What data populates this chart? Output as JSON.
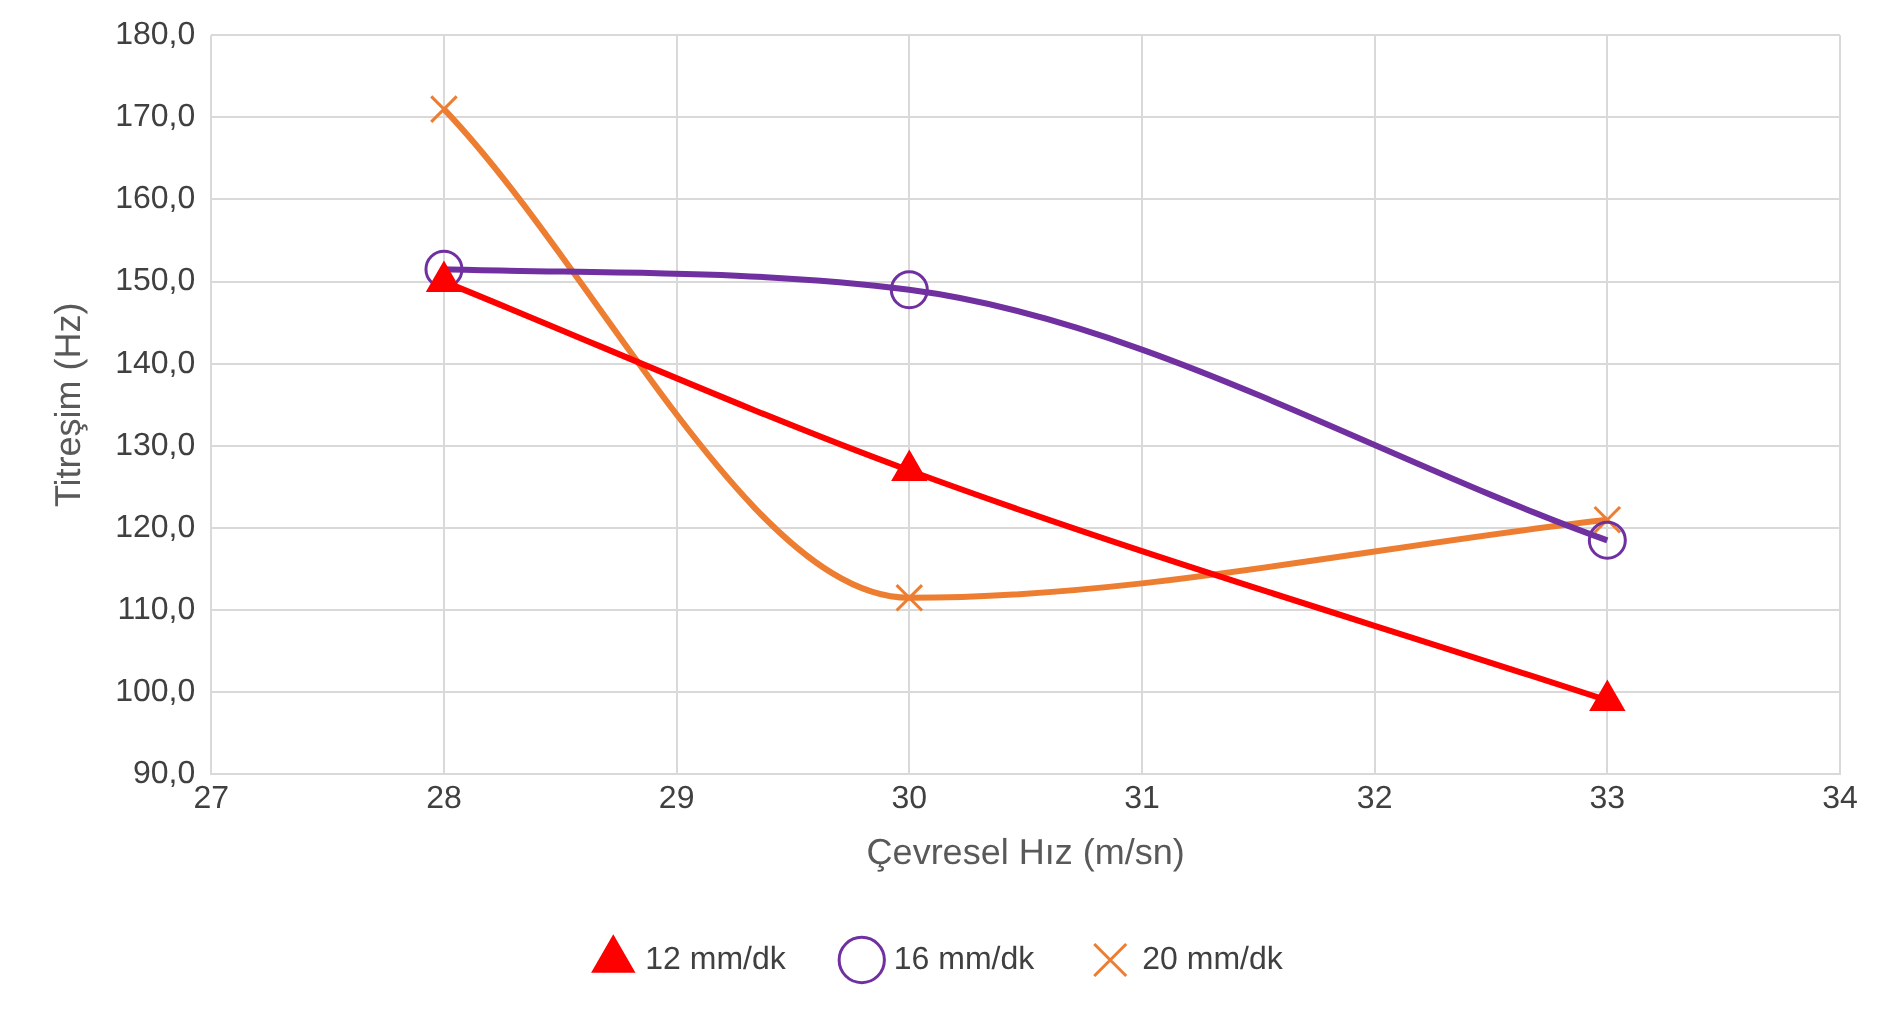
{
  "chart_data": {
    "type": "line",
    "xlabel": "Çevresel Hız (m/sn)",
    "ylabel": "Titreşim (Hz)",
    "x": [
      28,
      30,
      33
    ],
    "series": [
      {
        "name": "12 mm/dk",
        "color": "#ff0000",
        "marker": "triangle",
        "values": [
          150,
          127,
          99
        ]
      },
      {
        "name": "16 mm/dk",
        "color": "#7030a0",
        "marker": "circle",
        "values": [
          151.5,
          149,
          118.5
        ]
      },
      {
        "name": "20 mm/dk",
        "color": "#ed7d31",
        "marker": "cross",
        "values": [
          171,
          111.5,
          121
        ]
      }
    ],
    "xlim": [
      27,
      34
    ],
    "xticks": [
      27,
      28,
      29,
      30,
      31,
      32,
      33,
      34
    ],
    "ylim": [
      90,
      180
    ],
    "yticks": [
      {
        "value": 90,
        "label": "90,0"
      },
      {
        "value": 100,
        "label": "100,0"
      },
      {
        "value": 110,
        "label": "110,0"
      },
      {
        "value": 120,
        "label": "120,0"
      },
      {
        "value": 130,
        "label": "130,0"
      },
      {
        "value": 140,
        "label": "140,0"
      },
      {
        "value": 150,
        "label": "150,0"
      },
      {
        "value": 160,
        "label": "160,0"
      },
      {
        "value": 170,
        "label": "170,0"
      },
      {
        "value": 180,
        "label": "180,0"
      }
    ],
    "grid": true,
    "legend": "bottom"
  }
}
